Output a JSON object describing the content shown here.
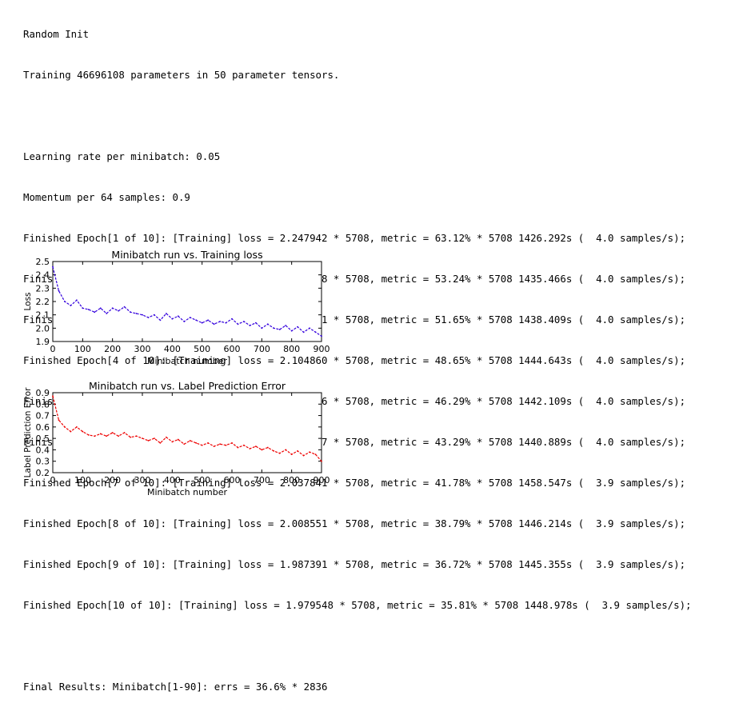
{
  "log": {
    "header": [
      "Random Init",
      "Training 46696108 parameters in 50 parameter tensors."
    ],
    "settings": [
      "Learning rate per minibatch: 0.05",
      "Momentum per 64 samples: 0.9"
    ],
    "epochs": [
      "Finished Epoch[1 of 10]: [Training] loss = 2.247942 * 5708, metric = 63.12% * 5708 1426.292s (  4.0 samples/s);",
      "Finished Epoch[2 of 10]: [Training] loss = 2.151428 * 5708, metric = 53.24% * 5708 1435.466s (  4.0 samples/s);",
      "Finished Epoch[3 of 10]: [Training] loss = 2.134871 * 5708, metric = 51.65% * 5708 1438.409s (  4.0 samples/s);",
      "Finished Epoch[4 of 10]: [Training] loss = 2.104860 * 5708, metric = 48.65% * 5708 1444.643s (  4.0 samples/s);",
      "Finished Epoch[5 of 10]: [Training] loss = 2.083016 * 5708, metric = 46.29% * 5708 1442.109s (  4.0 samples/s);",
      "Finished Epoch[6 of 10]: [Training] loss = 2.050987 * 5708, metric = 43.29% * 5708 1440.889s (  4.0 samples/s);",
      "Finished Epoch[7 of 10]: [Training] loss = 2.037841 * 5708, metric = 41.78% * 5708 1458.547s (  3.9 samples/s);",
      "Finished Epoch[8 of 10]: [Training] loss = 2.008551 * 5708, metric = 38.79% * 5708 1446.214s (  3.9 samples/s);",
      "Finished Epoch[9 of 10]: [Training] loss = 1.987391 * 5708, metric = 36.72% * 5708 1445.355s (  3.9 samples/s);",
      "Finished Epoch[10 of 10]: [Training] loss = 1.979548 * 5708, metric = 35.81% * 5708 1448.978s (  3.9 samples/s);"
    ],
    "final": "Final Results: Minibatch[1-90]: errs = 36.6% * 2836"
  },
  "chart_data": [
    {
      "type": "line",
      "title": "Minibatch run vs. Training loss",
      "xlabel": "Minibatch number",
      "ylabel": "Loss",
      "xlim": [
        0,
        900
      ],
      "ylim": [
        1.9,
        2.5
      ],
      "xticks": [
        "0",
        "100",
        "200",
        "300",
        "400",
        "500",
        "600",
        "700",
        "800",
        "900"
      ],
      "yticks": [
        "1.9",
        "2.0",
        "2.1",
        "2.2",
        "2.3",
        "2.4",
        "2.5"
      ],
      "color": "#3300dd",
      "grid": false,
      "x": [
        0,
        20,
        40,
        60,
        80,
        100,
        120,
        140,
        160,
        180,
        200,
        220,
        240,
        260,
        280,
        300,
        320,
        340,
        360,
        380,
        400,
        420,
        440,
        460,
        480,
        500,
        520,
        540,
        560,
        580,
        600,
        620,
        640,
        660,
        680,
        700,
        720,
        740,
        760,
        780,
        800,
        820,
        840,
        860,
        880,
        900
      ],
      "values": [
        2.46,
        2.28,
        2.2,
        2.17,
        2.21,
        2.15,
        2.14,
        2.12,
        2.15,
        2.11,
        2.15,
        2.13,
        2.16,
        2.12,
        2.11,
        2.1,
        2.08,
        2.1,
        2.06,
        2.11,
        2.07,
        2.09,
        2.05,
        2.08,
        2.06,
        2.04,
        2.06,
        2.03,
        2.05,
        2.04,
        2.07,
        2.03,
        2.05,
        2.02,
        2.04,
        2.0,
        2.03,
        2.0,
        1.99,
        2.02,
        1.98,
        2.01,
        1.97,
        2.0,
        1.97,
        1.94
      ]
    },
    {
      "type": "line",
      "title": "Minibatch run vs. Label Prediction Error",
      "xlabel": "Minibatch number",
      "ylabel": "Label Prediction Error",
      "xlim": [
        0,
        900
      ],
      "ylim": [
        0.2,
        0.9
      ],
      "xticks": [
        "0",
        "100",
        "200",
        "300",
        "400",
        "500",
        "600",
        "700",
        "800",
        "900"
      ],
      "yticks": [
        "0.2",
        "0.3",
        "0.4",
        "0.5",
        "0.6",
        "0.7",
        "0.8",
        "0.9"
      ],
      "color": "#ee0000",
      "grid": false,
      "x": [
        0,
        20,
        40,
        60,
        80,
        100,
        120,
        140,
        160,
        180,
        200,
        220,
        240,
        260,
        280,
        300,
        320,
        340,
        360,
        380,
        400,
        420,
        440,
        460,
        480,
        500,
        520,
        540,
        560,
        580,
        600,
        620,
        640,
        660,
        680,
        700,
        720,
        740,
        760,
        780,
        800,
        820,
        840,
        860,
        880,
        900
      ],
      "values": [
        0.87,
        0.66,
        0.6,
        0.56,
        0.6,
        0.56,
        0.53,
        0.52,
        0.54,
        0.52,
        0.55,
        0.52,
        0.55,
        0.51,
        0.52,
        0.5,
        0.48,
        0.5,
        0.46,
        0.51,
        0.47,
        0.49,
        0.45,
        0.48,
        0.46,
        0.44,
        0.46,
        0.43,
        0.45,
        0.44,
        0.46,
        0.42,
        0.44,
        0.41,
        0.43,
        0.4,
        0.42,
        0.39,
        0.37,
        0.4,
        0.36,
        0.39,
        0.35,
        0.38,
        0.36,
        0.3
      ]
    }
  ]
}
